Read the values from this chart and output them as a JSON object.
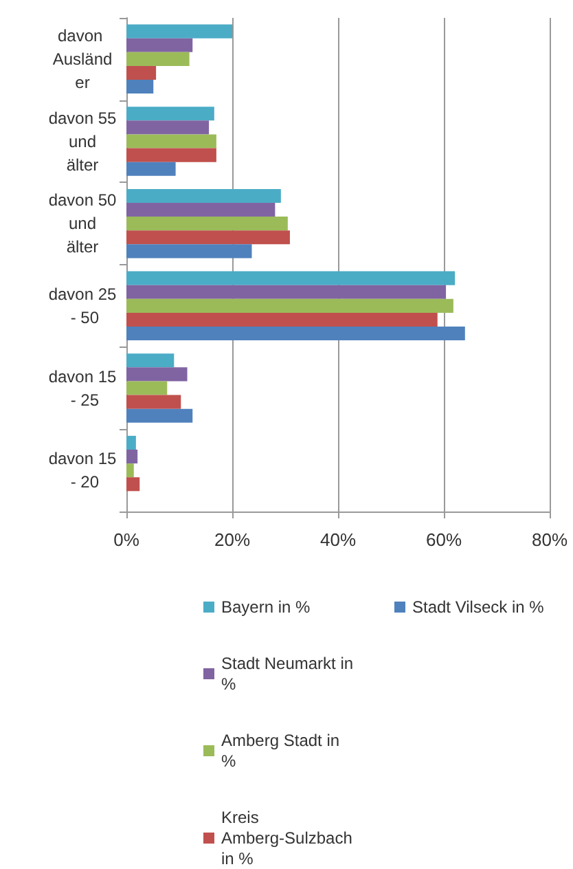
{
  "chart_data": {
    "type": "bar",
    "orientation": "horizontal",
    "categories": [
      "davon Ausländer",
      "davon 55 und älter",
      "davon 50 und älter",
      "davon 25 - 50",
      "davon 15 - 25",
      "davon 15 - 20"
    ],
    "series": [
      {
        "name": "Bayern in %",
        "color": "#4bacc6",
        "values": [
          20,
          16.6,
          29.2,
          62.1,
          9.0,
          1.8
        ]
      },
      {
        "name": "Stadt Neumarkt in %",
        "color": "#8064a2",
        "values": [
          12.5,
          15.6,
          28.1,
          60.4,
          11.5,
          2.1
        ]
      },
      {
        "name": "Amberg Stadt in %",
        "color": "#9bbb59",
        "values": [
          11.9,
          17,
          30.5,
          61.8,
          7.7,
          1.4
        ]
      },
      {
        "name": "Kreis Amberg-Sulzbach in %",
        "color": "#c0504d",
        "values": [
          5.6,
          17,
          30.9,
          58.8,
          10.3,
          2.5
        ]
      },
      {
        "name": "Stadt Vilseck in %",
        "color": "#4f81bd",
        "values": [
          5.1,
          9.3,
          23.7,
          64,
          12.5,
          null
        ]
      }
    ],
    "xlim": [
      0,
      80
    ],
    "xticks": [
      {
        "value": 0,
        "label": "0%"
      },
      {
        "value": 20,
        "label": "20%"
      },
      {
        "value": 40,
        "label": "40%"
      },
      {
        "value": 60,
        "label": "60%"
      },
      {
        "value": 80,
        "label": "80%"
      }
    ],
    "grid": "x",
    "legend": "bottom"
  }
}
